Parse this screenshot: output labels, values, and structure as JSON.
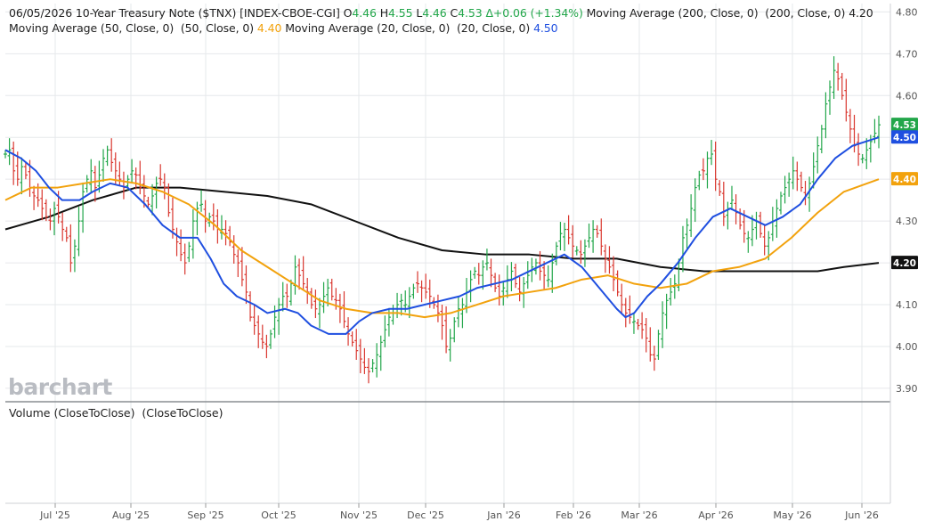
{
  "header": {
    "date": "06/05/2026",
    "name": "10-Year Treasury Note ($TNX) [INDEX-CBOE-CGI]",
    "open_label": "O",
    "open": "4.46",
    "high_label": "H",
    "high": "4.55",
    "low_label": "L",
    "low": "4.46",
    "close_label": "C",
    "close": "4.53",
    "change": "Δ+0.06 (+1.34%)",
    "ma200_label": "Moving Average (200, Close, 0)  (200, Close, 0)",
    "ma200_value": "4.20",
    "ma50_label": "Moving Average (50, Close, 0)  (50, Close, 0)",
    "ma50_value": "4.40",
    "ma20_label": "Moving Average (20, Close, 0)  (20, Close, 0)",
    "ma20_value": "4.50"
  },
  "watermark": "barchart",
  "volume_label": "Volume (CloseToClose)  (CloseToClose)",
  "colors": {
    "up": "#22a64a",
    "down": "#d9372f",
    "ma20": "#1f4fe0",
    "ma50": "#f2a20d",
    "ma200": "#111111",
    "grid": "#e6e8eb",
    "axis_text": "#555555"
  },
  "chart_data": {
    "type": "line",
    "title": "06/05/2026 10-Year Treasury Note ($TNX) [INDEX-CBOE-CGI]",
    "ylim": [
      3.87,
      4.82
    ],
    "y_ticks": [
      "3.90",
      "4.00",
      "4.10",
      "4.20",
      "4.30",
      "4.40",
      "4.50",
      "4.60",
      "4.70",
      "4.80"
    ],
    "x_ticks": [
      "Jul '25",
      "Aug '25",
      "Sep '25",
      "Oct '25",
      "Nov '25",
      "Dec '25",
      "Jan '26",
      "Feb '26",
      "Mar '26",
      "Apr '26",
      "May '26",
      "Jun '26"
    ],
    "grid": true,
    "price_badges": [
      {
        "label": "4.53",
        "value": 4.53,
        "color": "#22a64a"
      },
      {
        "label": "4.50",
        "value": 4.5,
        "color": "#1f4fe0"
      },
      {
        "label": "4.40",
        "value": 4.4,
        "color": "#f2a20d"
      },
      {
        "label": "4.20",
        "value": 4.2,
        "color": "#111111"
      }
    ],
    "close_series": [
      4.46,
      4.47,
      4.42,
      4.4,
      4.43,
      4.41,
      4.38,
      4.36,
      4.35,
      4.33,
      4.31,
      4.3,
      4.33,
      4.31,
      4.28,
      4.26,
      4.2,
      4.24,
      4.3,
      4.37,
      4.4,
      4.42,
      4.38,
      4.41,
      4.45,
      4.47,
      4.44,
      4.42,
      4.4,
      4.38,
      4.4,
      4.42,
      4.41,
      4.38,
      4.36,
      4.34,
      4.36,
      4.39,
      4.4,
      4.38,
      4.32,
      4.28,
      4.25,
      4.22,
      4.2,
      4.24,
      4.3,
      4.33,
      4.34,
      4.3,
      4.31,
      4.3,
      4.28,
      4.28,
      4.27,
      4.25,
      4.22,
      4.2,
      4.16,
      4.13,
      4.07,
      4.05,
      4.03,
      4.01,
      4.0,
      4.03,
      4.07,
      4.1,
      4.12,
      4.12,
      4.15,
      4.19,
      4.17,
      4.15,
      4.13,
      4.1,
      4.09,
      4.1,
      4.12,
      4.14,
      4.12,
      4.11,
      4.09,
      4.06,
      4.03,
      4.01,
      3.99,
      3.97,
      3.95,
      3.94,
      3.96,
      3.98,
      4.01,
      4.04,
      4.07,
      4.09,
      4.1,
      4.11,
      4.1,
      4.12,
      4.14,
      4.15,
      4.14,
      4.13,
      4.12,
      4.1,
      4.08,
      4.05,
      4.0,
      4.02,
      4.06,
      4.09,
      4.1,
      4.13,
      4.16,
      4.18,
      4.17,
      4.19,
      4.2,
      4.17,
      4.14,
      4.12,
      4.14,
      4.16,
      4.18,
      4.15,
      4.13,
      4.15,
      4.17,
      4.19,
      4.2,
      4.18,
      4.17,
      4.16,
      4.2,
      4.24,
      4.27,
      4.28,
      4.26,
      4.24,
      4.23,
      4.22,
      4.24,
      4.26,
      4.28,
      4.27,
      4.24,
      4.21,
      4.19,
      4.16,
      4.13,
      4.1,
      4.08,
      4.07,
      4.06,
      4.05,
      4.04,
      4.02,
      3.98,
      3.97,
      4.03,
      4.08,
      4.11,
      4.13,
      4.15,
      4.2,
      4.26,
      4.29,
      4.33,
      4.38,
      4.41,
      4.42,
      4.45,
      4.46,
      4.4,
      4.37,
      4.31,
      4.33,
      4.35,
      4.32,
      4.29,
      4.27,
      4.26,
      4.28,
      4.3,
      4.27,
      4.24,
      4.26,
      4.3,
      4.33,
      4.36,
      4.38,
      4.4,
      4.42,
      4.4,
      4.38,
      4.36,
      4.39,
      4.43,
      4.48,
      4.52,
      4.58,
      4.62,
      4.66,
      4.64,
      4.6,
      4.56,
      4.52,
      4.48,
      4.46,
      4.45,
      4.47,
      4.49,
      4.51,
      4.53
    ],
    "series": [
      {
        "name": "Moving Average (20, Close, 0)",
        "color": "#1f4fe0",
        "x": [
          0,
          0.018,
          0.035,
          0.05,
          0.065,
          0.085,
          0.1,
          0.12,
          0.14,
          0.16,
          0.18,
          0.2,
          0.22,
          0.235,
          0.25,
          0.265,
          0.285,
          0.3,
          0.32,
          0.335,
          0.35,
          0.37,
          0.39,
          0.405,
          0.42,
          0.44,
          0.46,
          0.48,
          0.5,
          0.52,
          0.54,
          0.56,
          0.58,
          0.6,
          0.62,
          0.64,
          0.66,
          0.68,
          0.7,
          0.71,
          0.72,
          0.735,
          0.75,
          0.77,
          0.79,
          0.81,
          0.83,
          0.85,
          0.87,
          0.89,
          0.91,
          0.93,
          0.95,
          0.97,
          0.985,
          1.0
        ],
        "y": [
          4.47,
          4.45,
          4.42,
          4.38,
          4.35,
          4.35,
          4.37,
          4.39,
          4.38,
          4.34,
          4.29,
          4.26,
          4.26,
          4.21,
          4.15,
          4.12,
          4.1,
          4.08,
          4.09,
          4.08,
          4.05,
          4.03,
          4.03,
          4.06,
          4.08,
          4.09,
          4.09,
          4.1,
          4.11,
          4.12,
          4.14,
          4.15,
          4.16,
          4.18,
          4.2,
          4.22,
          4.19,
          4.14,
          4.09,
          4.07,
          4.08,
          4.12,
          4.15,
          4.2,
          4.26,
          4.31,
          4.33,
          4.31,
          4.29,
          4.31,
          4.34,
          4.4,
          4.45,
          4.48,
          4.49,
          4.5
        ]
      },
      {
        "name": "Moving Average (50, Close, 0)",
        "color": "#f2a20d",
        "x": [
          0,
          0.03,
          0.06,
          0.09,
          0.12,
          0.15,
          0.18,
          0.21,
          0.24,
          0.27,
          0.3,
          0.33,
          0.36,
          0.39,
          0.42,
          0.45,
          0.48,
          0.51,
          0.54,
          0.57,
          0.6,
          0.63,
          0.66,
          0.69,
          0.72,
          0.75,
          0.78,
          0.81,
          0.84,
          0.87,
          0.9,
          0.93,
          0.96,
          1.0
        ],
        "y": [
          4.35,
          4.38,
          4.38,
          4.39,
          4.4,
          4.39,
          4.37,
          4.34,
          4.29,
          4.23,
          4.19,
          4.15,
          4.11,
          4.09,
          4.08,
          4.08,
          4.07,
          4.08,
          4.1,
          4.12,
          4.13,
          4.14,
          4.16,
          4.17,
          4.15,
          4.14,
          4.15,
          4.18,
          4.19,
          4.21,
          4.26,
          4.32,
          4.37,
          4.4
        ]
      },
      {
        "name": "Moving Average (200, Close, 0)",
        "color": "#111111",
        "x": [
          0,
          0.05,
          0.1,
          0.15,
          0.2,
          0.25,
          0.3,
          0.35,
          0.4,
          0.45,
          0.5,
          0.55,
          0.6,
          0.65,
          0.7,
          0.75,
          0.8,
          0.85,
          0.9,
          0.93,
          0.96,
          1.0
        ],
        "y": [
          4.28,
          4.31,
          4.35,
          4.38,
          4.38,
          4.37,
          4.36,
          4.34,
          4.3,
          4.26,
          4.23,
          4.22,
          4.22,
          4.21,
          4.21,
          4.19,
          4.18,
          4.18,
          4.18,
          4.18,
          4.19,
          4.2
        ]
      }
    ]
  }
}
